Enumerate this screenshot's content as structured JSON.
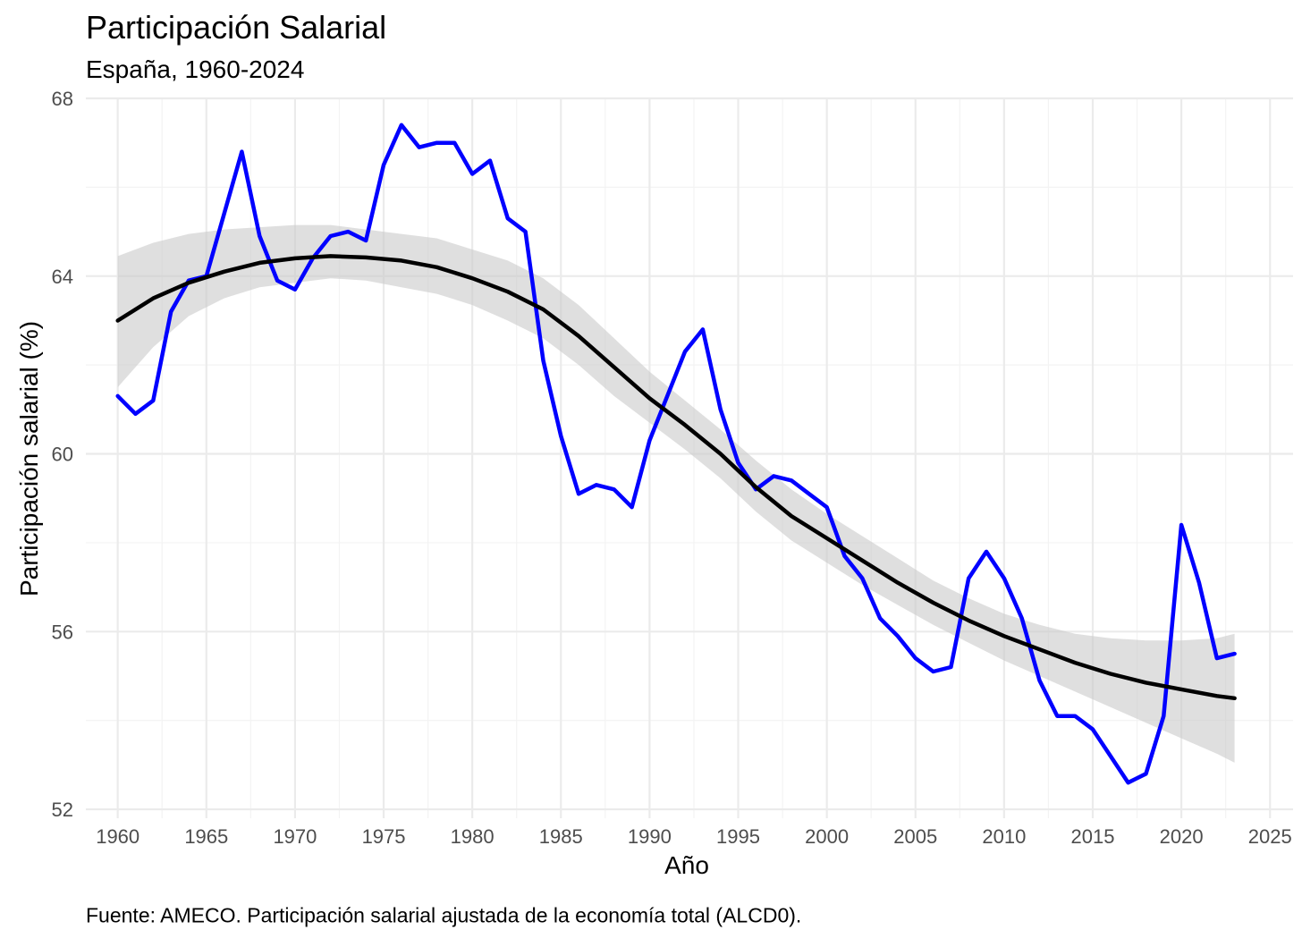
{
  "chart_data": {
    "type": "line",
    "title": "Participación Salarial",
    "subtitle": "España, 1960-2024",
    "xlabel": "Año",
    "ylabel": "Participación salarial (%)",
    "caption": "Fuente: AMECO. Participación salarial ajustada de la economía total (ALCD0).",
    "xlim": [
      1958.2,
      2026.3
    ],
    "ylim": [
      51.8,
      68.0
    ],
    "x_ticks": [
      1960,
      1965,
      1970,
      1975,
      1980,
      1985,
      1990,
      1995,
      2000,
      2005,
      2010,
      2015,
      2020,
      2025
    ],
    "y_ticks": [
      52,
      56,
      60,
      64,
      68
    ],
    "grid": true,
    "colors": {
      "series": "#0000ff",
      "trend": "#000000",
      "band": "#c9c9c9",
      "grid_major": "#ebebeb",
      "grid_minor": "#f3f3f3"
    },
    "series": [
      {
        "x": [
          1960,
          1961,
          1962,
          1963,
          1964,
          1965,
          1966,
          1967,
          1968,
          1969,
          1970,
          1971,
          1972,
          1973,
          1974,
          1975,
          1976,
          1977,
          1978,
          1979,
          1980,
          1981,
          1982,
          1983,
          1984,
          1985,
          1986,
          1987,
          1988,
          1989,
          1990,
          1991,
          1992,
          1993,
          1994,
          1995,
          1996,
          1997,
          1998,
          1999,
          2000,
          2001,
          2002,
          2003,
          2004,
          2005,
          2006,
          2007,
          2008,
          2009,
          2010,
          2011,
          2012,
          2013,
          2014,
          2015,
          2016,
          2017,
          2018,
          2019,
          2020,
          2021,
          2022,
          2023
        ],
        "values": [
          61.3,
          60.9,
          61.2,
          63.2,
          63.9,
          64.0,
          65.4,
          66.8,
          64.9,
          63.9,
          63.7,
          64.4,
          64.9,
          65.0,
          64.8,
          66.5,
          67.4,
          66.9,
          67.0,
          67.0,
          66.3,
          66.6,
          65.3,
          65.0,
          62.1,
          60.4,
          59.1,
          59.3,
          59.2,
          58.8,
          60.3,
          61.3,
          62.3,
          62.8,
          61.0,
          59.8,
          59.2,
          59.5,
          59.4,
          59.1,
          58.8,
          57.7,
          57.2,
          56.3,
          55.9,
          55.4,
          55.1,
          55.2,
          57.2,
          57.8,
          57.2,
          56.3,
          54.9,
          54.1,
          54.1,
          53.8,
          53.2,
          52.6,
          52.8,
          54.1,
          58.4,
          57.1,
          55.4,
          55.5
        ]
      },
      {
        "x": [
          1960,
          1962,
          1964,
          1966,
          1968,
          1970,
          1972,
          1974,
          1976,
          1978,
          1980,
          1982,
          1984,
          1986,
          1988,
          1990,
          1992,
          1994,
          1996,
          1998,
          2000,
          2002,
          2004,
          2006,
          2008,
          2010,
          2012,
          2014,
          2016,
          2018,
          2020,
          2022,
          2023
        ],
        "values": [
          63.0,
          63.5,
          63.85,
          64.1,
          64.3,
          64.4,
          64.45,
          64.42,
          64.35,
          64.2,
          63.95,
          63.65,
          63.25,
          62.65,
          61.95,
          61.25,
          60.65,
          60.0,
          59.25,
          58.6,
          58.1,
          57.6,
          57.1,
          56.65,
          56.25,
          55.9,
          55.6,
          55.3,
          55.05,
          54.85,
          54.7,
          54.55,
          54.5
        ],
        "lower": [
          61.5,
          62.4,
          63.1,
          63.5,
          63.75,
          63.85,
          63.95,
          63.9,
          63.75,
          63.6,
          63.35,
          63.0,
          62.6,
          62.0,
          61.3,
          60.7,
          60.1,
          59.45,
          58.7,
          58.05,
          57.55,
          57.05,
          56.6,
          56.15,
          55.75,
          55.35,
          55.0,
          54.65,
          54.3,
          53.95,
          53.6,
          53.25,
          53.05
        ],
        "upper": [
          64.45,
          64.75,
          64.95,
          65.05,
          65.1,
          65.15,
          65.15,
          65.05,
          64.95,
          64.85,
          64.6,
          64.35,
          63.95,
          63.35,
          62.6,
          61.85,
          61.2,
          60.55,
          59.85,
          59.2,
          58.65,
          58.15,
          57.65,
          57.15,
          56.75,
          56.4,
          56.15,
          55.95,
          55.85,
          55.8,
          55.8,
          55.85,
          55.95
        ]
      }
    ]
  }
}
